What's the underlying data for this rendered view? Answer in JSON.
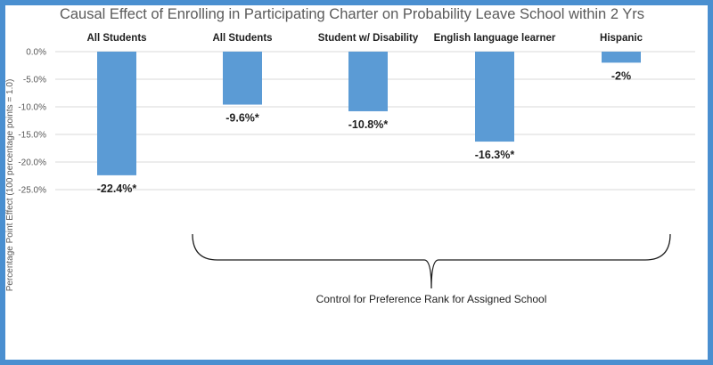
{
  "chart_data": {
    "type": "bar",
    "title": "Causal Effect of Enrolling in Participating Charter on Probability Leave School within 2 Yrs",
    "ylabel": "Percentage Point Effect  (100 percentage points = 1.0)",
    "xlabel": "",
    "ylim": [
      -25,
      0
    ],
    "yticks": [
      0,
      -5,
      -10,
      -15,
      -20,
      -25
    ],
    "ytick_labels": [
      "0.0%",
      "-5.0%",
      "-10.0%",
      "-15.0%",
      "-20.0%",
      "-25.0%"
    ],
    "grid": true,
    "categories": [
      "All Students",
      "All Students",
      "Student w/ Disability",
      "English language learner",
      "Hispanic"
    ],
    "values": [
      -22.4,
      -9.6,
      -10.8,
      -16.3,
      -2
    ],
    "data_labels": [
      "-22.4%*",
      "-9.6%*",
      "-10.8%*",
      "-16.3%*",
      "-2%"
    ],
    "annotation": "Control for Preference Rank for Assigned School",
    "bar_color": "#5b9bd5",
    "frame_color": "#4a8fd0"
  }
}
